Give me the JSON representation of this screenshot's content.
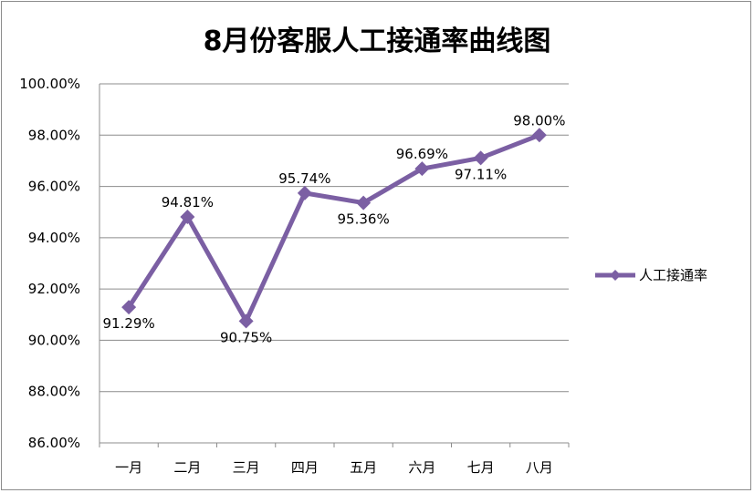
{
  "chart_data": {
    "type": "line",
    "title": "8月份客服人工接通率曲线图",
    "categories": [
      "一月",
      "二月",
      "三月",
      "四月",
      "五月",
      "六月",
      "七月",
      "八月"
    ],
    "series": [
      {
        "name": "人工接通率",
        "values": [
          91.29,
          94.81,
          90.75,
          95.74,
          95.36,
          96.69,
          97.11,
          98.0
        ],
        "labels": [
          "91.29%",
          "94.81%",
          "90.75%",
          "95.74%",
          "95.36%",
          "96.69%",
          "97.11%",
          "98.00%"
        ],
        "color": "#7b5fa3"
      }
    ],
    "ylim": [
      86,
      100
    ],
    "yticks": [
      "86.00%",
      "88.00%",
      "90.00%",
      "92.00%",
      "94.00%",
      "96.00%",
      "98.00%",
      "100.00%"
    ],
    "grid": true,
    "legend_position": "right"
  }
}
